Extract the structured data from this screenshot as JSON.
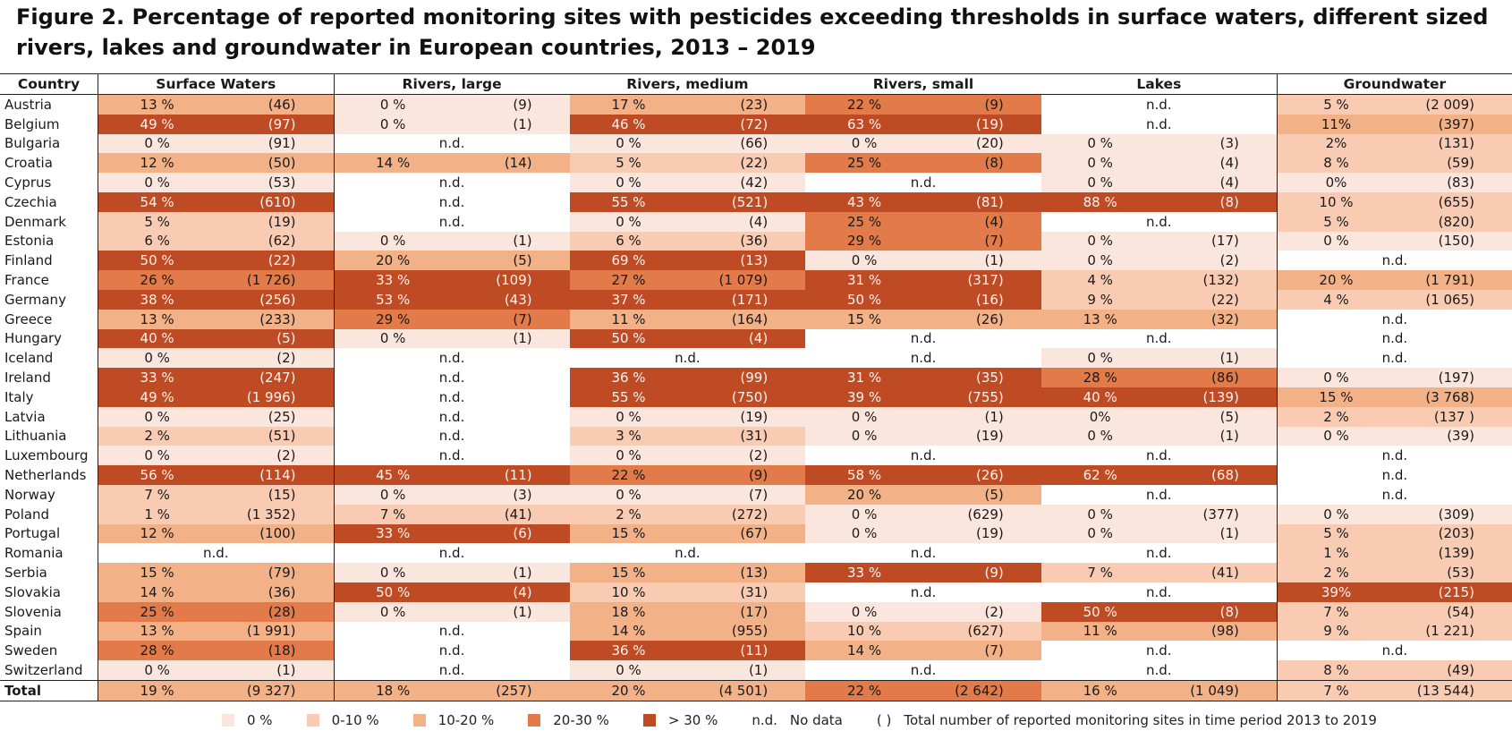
{
  "title": "Figure 2. Percentage of reported monitoring sites with pesticides exceeding thresholds in surface waters, different sized rivers, lakes and groundwater in European countries, 2013 – 2019",
  "colors": {
    "0": "#fbe6de",
    "1": "#f8cbb2",
    "2": "#f3b187",
    "3": "#e27a49",
    "4": "#bf4b24",
    "nd": "#ffffff"
  },
  "chart_data": {
    "type": "table",
    "title": "Figure 2. Percentage of reported monitoring sites with pesticides exceeding thresholds in surface waters, different sized rivers, lakes and groundwater in European countries, 2013 – 2019",
    "columns": [
      "Country",
      "Surface Waters",
      "Rivers, large",
      "Rivers, medium",
      "Rivers, small",
      "Lakes",
      "Groundwater"
    ],
    "rows": [
      {
        "country": "Austria",
        "cells": [
          [
            "13 %",
            "(46)",
            2
          ],
          [
            "0 %",
            "(9)",
            0
          ],
          [
            "17 %",
            "(23)",
            2
          ],
          [
            "22 %",
            "(9)",
            3
          ],
          [
            "n.d.",
            "",
            -1
          ],
          [
            "5 %",
            "(2 009)",
            1
          ]
        ]
      },
      {
        "country": "Belgium",
        "cells": [
          [
            "49 %",
            "(97)",
            4
          ],
          [
            "0 %",
            "(1)",
            0
          ],
          [
            "46 %",
            "(72)",
            4
          ],
          [
            "63 %",
            "(19)",
            4
          ],
          [
            "n.d.",
            "",
            -1
          ],
          [
            "11%",
            "(397)",
            2
          ]
        ]
      },
      {
        "country": "Bulgaria",
        "cells": [
          [
            "0 %",
            "(91)",
            0
          ],
          [
            "n.d.",
            "",
            -1
          ],
          [
            "0 %",
            "(66)",
            0
          ],
          [
            "0 %",
            "(20)",
            0
          ],
          [
            "0 %",
            "(3)",
            0
          ],
          [
            "2%",
            "(131)",
            1
          ]
        ]
      },
      {
        "country": "Croatia",
        "cells": [
          [
            "12 %",
            "(50)",
            2
          ],
          [
            "14 %",
            "(14)",
            2
          ],
          [
            "5 %",
            "(22)",
            1
          ],
          [
            "25 %",
            "(8)",
            3
          ],
          [
            "0 %",
            "(4)",
            0
          ],
          [
            "8 %",
            "(59)",
            1
          ]
        ]
      },
      {
        "country": "Cyprus",
        "cells": [
          [
            "0 %",
            "(53)",
            0
          ],
          [
            "n.d.",
            "",
            -1
          ],
          [
            "0 %",
            "(42)",
            0
          ],
          [
            "n.d.",
            "",
            -1
          ],
          [
            "0 %",
            "(4)",
            0
          ],
          [
            "0%",
            "(83)",
            0
          ]
        ]
      },
      {
        "country": "Czechia",
        "cells": [
          [
            "54 %",
            "(610)",
            4
          ],
          [
            "n.d.",
            "",
            -1
          ],
          [
            "55 %",
            "(521)",
            4
          ],
          [
            "43 %",
            "(81)",
            4
          ],
          [
            "88 %",
            "(8)",
            4
          ],
          [
            "10 %",
            "(655)",
            1
          ]
        ]
      },
      {
        "country": "Denmark",
        "cells": [
          [
            "5 %",
            "(19)",
            1
          ],
          [
            "n.d.",
            "",
            -1
          ],
          [
            "0 %",
            "(4)",
            0
          ],
          [
            "25 %",
            "(4)",
            3
          ],
          [
            "n.d.",
            "",
            -1
          ],
          [
            "5 %",
            "(820)",
            1
          ]
        ]
      },
      {
        "country": "Estonia",
        "cells": [
          [
            "6 %",
            "(62)",
            1
          ],
          [
            "0 %",
            "(1)",
            0
          ],
          [
            "6 %",
            "(36)",
            1
          ],
          [
            "29 %",
            "(7)",
            3
          ],
          [
            "0 %",
            "(17)",
            0
          ],
          [
            "0 %",
            "(150)",
            0
          ]
        ]
      },
      {
        "country": "Finland",
        "cells": [
          [
            "50 %",
            "(22)",
            4
          ],
          [
            "20 %",
            "(5)",
            2
          ],
          [
            "69 %",
            "(13)",
            4
          ],
          [
            "0 %",
            "(1)",
            0
          ],
          [
            "0 %",
            "(2)",
            0
          ],
          [
            "n.d.",
            "",
            -1
          ]
        ]
      },
      {
        "country": "France",
        "cells": [
          [
            "26 %",
            "(1 726)",
            3
          ],
          [
            "33 %",
            "(109)",
            4
          ],
          [
            "27 %",
            "(1 079)",
            3
          ],
          [
            "31 %",
            "(317)",
            4
          ],
          [
            "4 %",
            "(132)",
            1
          ],
          [
            "20 %",
            "(1 791)",
            2
          ]
        ]
      },
      {
        "country": "Germany",
        "cells": [
          [
            "38 %",
            "(256)",
            4
          ],
          [
            "53 %",
            "(43)",
            4
          ],
          [
            "37 %",
            "(171)",
            4
          ],
          [
            "50 %",
            "(16)",
            4
          ],
          [
            "9 %",
            "(22)",
            1
          ],
          [
            "4 %",
            "(1 065)",
            1
          ]
        ]
      },
      {
        "country": "Greece",
        "cells": [
          [
            "13 %",
            "(233)",
            2
          ],
          [
            "29 %",
            "(7)",
            3
          ],
          [
            "11 %",
            "(164)",
            2
          ],
          [
            "15 %",
            "(26)",
            2
          ],
          [
            "13 %",
            "(32)",
            2
          ],
          [
            "n.d.",
            "",
            -1
          ]
        ]
      },
      {
        "country": "Hungary",
        "cells": [
          [
            "40 %",
            "(5)",
            4
          ],
          [
            "0 %",
            "(1)",
            0
          ],
          [
            "50 %",
            "(4)",
            4
          ],
          [
            "n.d.",
            "",
            -1
          ],
          [
            "n.d.",
            "",
            -1
          ],
          [
            "n.d.",
            "",
            -1
          ]
        ]
      },
      {
        "country": "Iceland",
        "cells": [
          [
            "0 %",
            "(2)",
            0
          ],
          [
            "n.d.",
            "",
            -1
          ],
          [
            "n.d.",
            "",
            -1
          ],
          [
            "n.d.",
            "",
            -1
          ],
          [
            "0 %",
            "(1)",
            0
          ],
          [
            "n.d.",
            "",
            -1
          ]
        ]
      },
      {
        "country": "Ireland",
        "cells": [
          [
            "33 %",
            "(247)",
            4
          ],
          [
            "n.d.",
            "",
            -1
          ],
          [
            "36 %",
            "(99)",
            4
          ],
          [
            "31 %",
            "(35)",
            4
          ],
          [
            "28 %",
            "(86)",
            3
          ],
          [
            "0 %",
            "(197)",
            0
          ]
        ]
      },
      {
        "country": "Italy",
        "cells": [
          [
            "49 %",
            "(1 996)",
            4
          ],
          [
            "n.d.",
            "",
            -1
          ],
          [
            "55 %",
            "(750)",
            4
          ],
          [
            "39 %",
            "(755)",
            4
          ],
          [
            "40 %",
            "(139)",
            4
          ],
          [
            "15 %",
            "(3 768)",
            2
          ]
        ]
      },
      {
        "country": "Latvia",
        "cells": [
          [
            "0 %",
            "(25)",
            0
          ],
          [
            "n.d.",
            "",
            -1
          ],
          [
            "0 %",
            "(19)",
            0
          ],
          [
            "0 %",
            "(1)",
            0
          ],
          [
            "0%",
            "(5)",
            0
          ],
          [
            "2 %",
            "(137 )",
            1
          ]
        ]
      },
      {
        "country": "Lithuania",
        "cells": [
          [
            "2 %",
            "(51)",
            1
          ],
          [
            "n.d.",
            "",
            -1
          ],
          [
            "3 %",
            "(31)",
            1
          ],
          [
            "0 %",
            "(19)",
            0
          ],
          [
            "0 %",
            "(1)",
            0
          ],
          [
            "0 %",
            "(39)",
            0
          ]
        ]
      },
      {
        "country": "Luxembourg",
        "cells": [
          [
            "0 %",
            "(2)",
            0
          ],
          [
            "n.d.",
            "",
            -1
          ],
          [
            "0 %",
            "(2)",
            0
          ],
          [
            "n.d.",
            "",
            -1
          ],
          [
            "n.d.",
            "",
            -1
          ],
          [
            "n.d.",
            "",
            -1
          ]
        ]
      },
      {
        "country": "Netherlands",
        "cells": [
          [
            "56 %",
            "(114)",
            4
          ],
          [
            "45 %",
            "(11)",
            4
          ],
          [
            "22 %",
            "(9)",
            3
          ],
          [
            "58 %",
            "(26)",
            4
          ],
          [
            "62 %",
            "(68)",
            4
          ],
          [
            "n.d.",
            "",
            -1
          ]
        ]
      },
      {
        "country": "Norway",
        "cells": [
          [
            "7 %",
            "(15)",
            1
          ],
          [
            "0 %",
            "(3)",
            0
          ],
          [
            "0 %",
            "(7)",
            0
          ],
          [
            "20 %",
            "(5)",
            2
          ],
          [
            "n.d.",
            "",
            -1
          ],
          [
            "n.d.",
            "",
            -1
          ]
        ]
      },
      {
        "country": "Poland",
        "cells": [
          [
            "1 %",
            "(1 352)",
            1
          ],
          [
            "7 %",
            "(41)",
            1
          ],
          [
            "2 %",
            "(272)",
            1
          ],
          [
            "0 %",
            "(629)",
            0
          ],
          [
            "0 %",
            "(377)",
            0
          ],
          [
            "0 %",
            "(309)",
            0
          ]
        ]
      },
      {
        "country": "Portugal",
        "cells": [
          [
            "12 %",
            "(100)",
            2
          ],
          [
            "33 %",
            "(6)",
            4
          ],
          [
            "15 %",
            "(67)",
            2
          ],
          [
            "0 %",
            "(19)",
            0
          ],
          [
            "0 %",
            "(1)",
            0
          ],
          [
            "5  %",
            "(203)",
            1
          ]
        ]
      },
      {
        "country": "Romania",
        "cells": [
          [
            "n.d.",
            "",
            -1
          ],
          [
            "n.d.",
            "",
            -1
          ],
          [
            "n.d.",
            "",
            -1
          ],
          [
            "n.d.",
            "",
            -1
          ],
          [
            "n.d.",
            "",
            -1
          ],
          [
            "1 %",
            "(139)",
            1
          ]
        ]
      },
      {
        "country": "Serbia",
        "cells": [
          [
            "15 %",
            "(79)",
            2
          ],
          [
            "0 %",
            "(1)",
            0
          ],
          [
            "15 %",
            "(13)",
            2
          ],
          [
            "33 %",
            "(9)",
            4
          ],
          [
            "7 %",
            "(41)",
            1
          ],
          [
            "2 %",
            "(53)",
            1
          ]
        ]
      },
      {
        "country": "Slovakia",
        "cells": [
          [
            "14 %",
            "(36)",
            2
          ],
          [
            "50 %",
            "(4)",
            4
          ],
          [
            "10 %",
            "(31)",
            1
          ],
          [
            "n.d.",
            "",
            -1
          ],
          [
            "n.d.",
            "",
            -1
          ],
          [
            "39%",
            "(215)",
            4
          ]
        ]
      },
      {
        "country": "Slovenia",
        "cells": [
          [
            "25 %",
            "(28)",
            3
          ],
          [
            "0 %",
            "(1)",
            0
          ],
          [
            "18 %",
            "(17)",
            2
          ],
          [
            "0 %",
            "(2)",
            0
          ],
          [
            "50 %",
            "(8)",
            4
          ],
          [
            "7 %",
            "(54)",
            1
          ]
        ]
      },
      {
        "country": "Spain",
        "cells": [
          [
            "13 %",
            "(1 991)",
            2
          ],
          [
            "n.d.",
            "",
            -1
          ],
          [
            "14 %",
            "(955)",
            2
          ],
          [
            "10 %",
            "(627)",
            1
          ],
          [
            "11 %",
            "(98)",
            2
          ],
          [
            "9 %",
            "(1 221)",
            1
          ]
        ]
      },
      {
        "country": "Sweden",
        "cells": [
          [
            "28 %",
            "(18)",
            3
          ],
          [
            "n.d.",
            "",
            -1
          ],
          [
            "36 %",
            "(11)",
            4
          ],
          [
            "14 %",
            "(7)",
            2
          ],
          [
            "n.d.",
            "",
            -1
          ],
          [
            "n.d.",
            "",
            -1
          ]
        ]
      },
      {
        "country": "Switzerland",
        "cells": [
          [
            "0 %",
            "(1)",
            0
          ],
          [
            "n.d.",
            "",
            -1
          ],
          [
            "0 %",
            "(1)",
            0
          ],
          [
            "n.d.",
            "",
            -1
          ],
          [
            "n.d.",
            "",
            -1
          ],
          [
            "8 %",
            "(49)",
            1
          ]
        ]
      }
    ],
    "total": {
      "country": "Total",
      "cells": [
        [
          "19 %",
          "(9 327)",
          2
        ],
        [
          "18 %",
          "(257)",
          2
        ],
        [
          "20 %",
          "(4 501)",
          2
        ],
        [
          "22 %",
          "(2 642)",
          3
        ],
        [
          "16 %",
          "(1 049)",
          2
        ],
        [
          "7 %",
          "(13 544)",
          1
        ]
      ]
    },
    "legend": [
      {
        "label": "0 %",
        "level": 0
      },
      {
        "label": "0-10 %",
        "level": 1
      },
      {
        "label": "10-20 %",
        "level": 2
      },
      {
        "label": "20-30 %",
        "level": 3
      },
      {
        "label": "> 30 %",
        "level": 4
      }
    ]
  },
  "legend_nd": {
    "symbol": "n.d.",
    "label": "No data"
  },
  "legend_paren": {
    "symbol": "( )",
    "label": "Total number of reported monitoring sites in time period 2013 to 2019"
  }
}
